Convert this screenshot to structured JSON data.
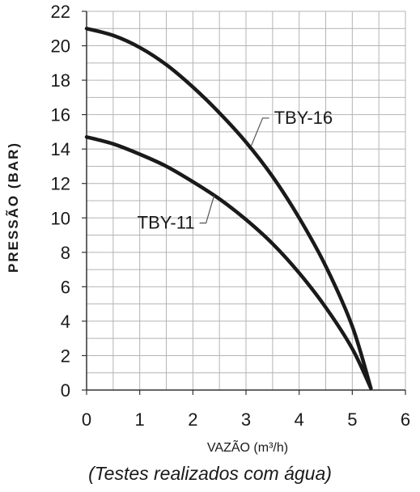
{
  "chart_data": {
    "type": "line",
    "xlabel": "VAZÃO (m³/h)",
    "ylabel": "PRESSÃO (BAR)",
    "xlim": [
      0,
      6
    ],
    "ylim": [
      0,
      22
    ],
    "xticks": [
      0,
      1,
      2,
      3,
      4,
      5,
      6
    ],
    "yticks": [
      0,
      2,
      4,
      6,
      8,
      10,
      12,
      14,
      16,
      18,
      20,
      22
    ],
    "grid": true,
    "series": [
      {
        "name": "TBY-16",
        "x": [
          0,
          0.5,
          1,
          1.5,
          2,
          2.5,
          3,
          3.5,
          4,
          4.5,
          5,
          5.35
        ],
        "y": [
          21.0,
          20.6,
          19.9,
          18.9,
          17.6,
          16.1,
          14.4,
          12.4,
          10.0,
          7.2,
          3.7,
          0.1
        ]
      },
      {
        "name": "TBY-11",
        "x": [
          0,
          0.5,
          1,
          1.5,
          2,
          2.5,
          3,
          3.5,
          4,
          4.5,
          5,
          5.35
        ],
        "y": [
          14.7,
          14.3,
          13.7,
          13.0,
          12.1,
          11.1,
          9.9,
          8.5,
          6.8,
          4.8,
          2.4,
          0.1
        ]
      }
    ],
    "annotations": [
      {
        "series": "TBY-16",
        "text": "TBY-16",
        "at": [
          3.1,
          14.2
        ]
      },
      {
        "series": "TBY-11",
        "text": "TBY-11",
        "at": [
          2.4,
          11.3
        ]
      }
    ],
    "caption": "(Testes realizados com água)",
    "line_color": "#1a1a1a",
    "grid_color": "#b4b4b4"
  }
}
